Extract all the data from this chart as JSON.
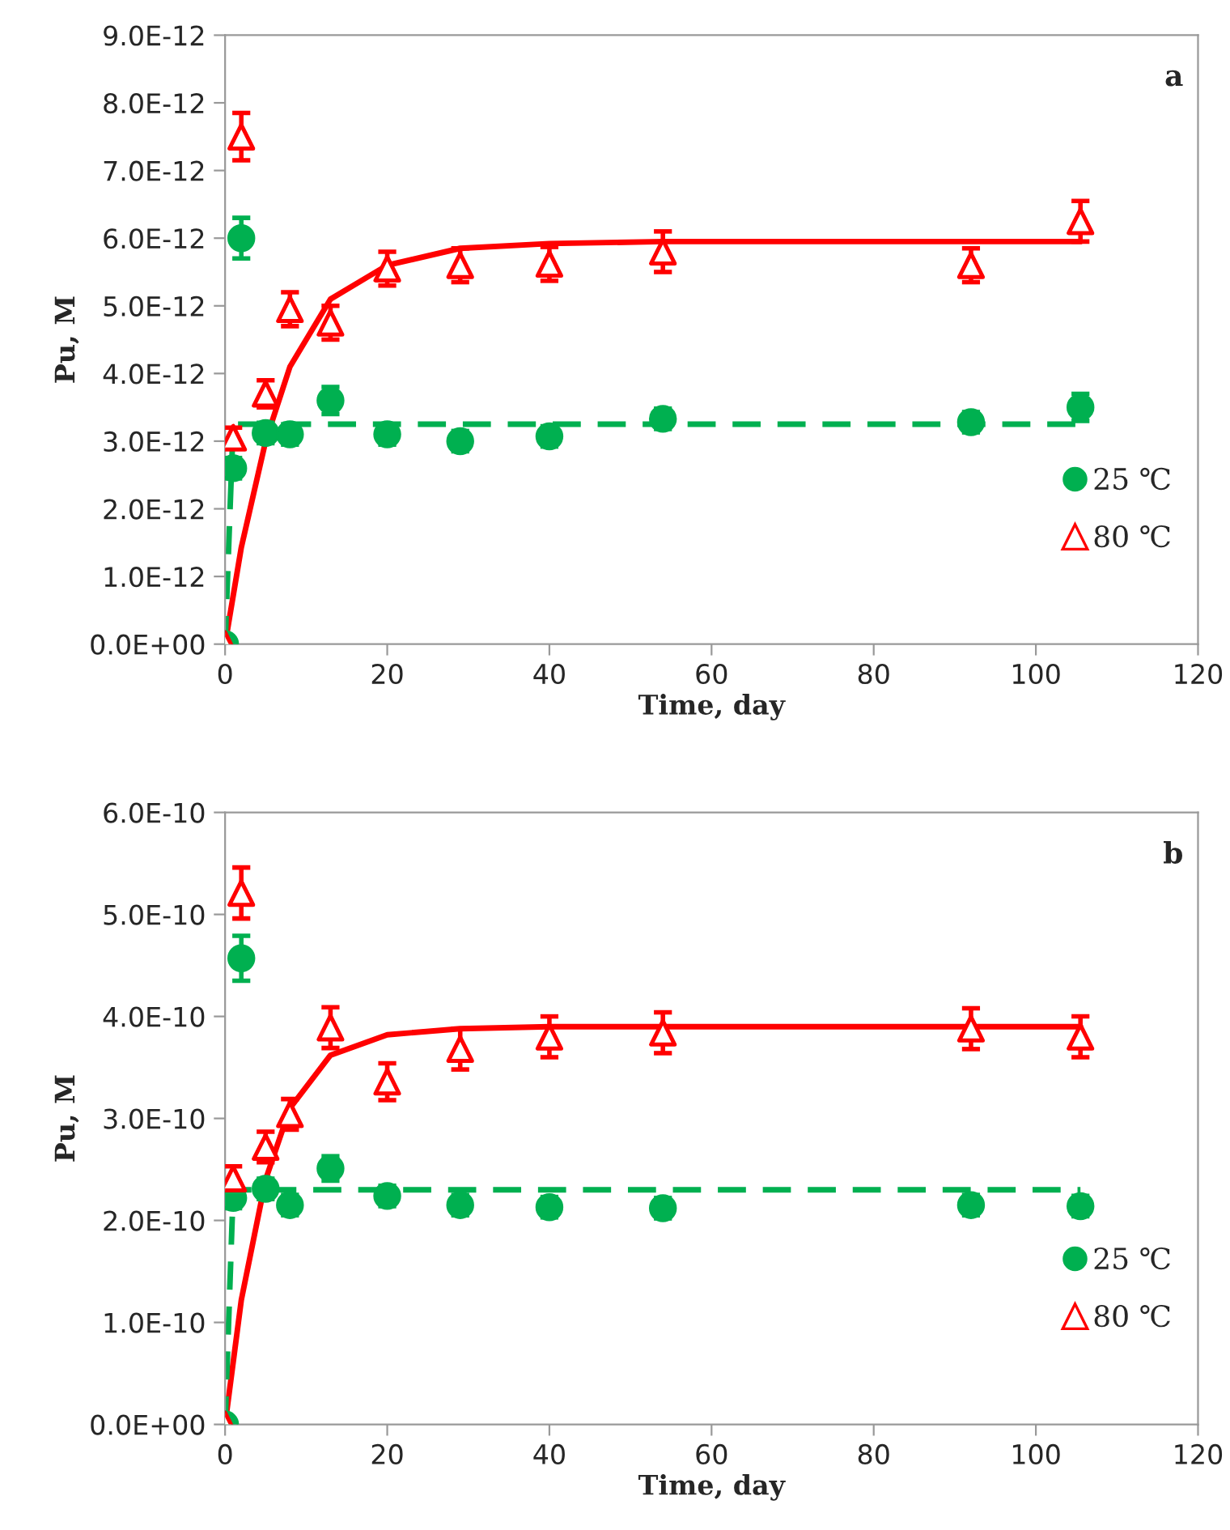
{
  "chart_data": [
    {
      "type": "scatter",
      "xlabel": "Time, day",
      "ylabel": "Pu, M",
      "annotations": [
        "a"
      ],
      "xlim": [
        0,
        120
      ],
      "xticks": [
        0,
        20,
        40,
        60,
        80,
        100,
        120
      ],
      "ylim": [
        0,
        9e-12
      ],
      "yticks": [
        {
          "value": 0,
          "label": "0.0E+00"
        },
        {
          "value": 1e-12,
          "label": "1.0E-12"
        },
        {
          "value": 2e-12,
          "label": "2.0E-12"
        },
        {
          "value": 3e-12,
          "label": "3.0E-12"
        },
        {
          "value": 4e-12,
          "label": "4.0E-12"
        },
        {
          "value": 5e-12,
          "label": "5.0E-12"
        },
        {
          "value": 6e-12,
          "label": "6.0E-12"
        },
        {
          "value": 7e-12,
          "label": "7.0E-12"
        },
        {
          "value": 8e-12,
          "label": "8.0E-12"
        },
        {
          "value": 9e-12,
          "label": "9.0E-12"
        }
      ],
      "grid": false,
      "legend": "right",
      "series": [
        {
          "type": "line",
          "color": "#ff0000",
          "line_style": "solid",
          "marker": "none",
          "x": [
            0,
            2,
            5,
            8,
            13,
            20,
            29,
            40,
            54,
            105.5
          ],
          "values": [
            0,
            1.43e-12,
            3e-12,
            4.1e-12,
            5.1e-12,
            5.6e-12,
            5.85e-12,
            5.92e-12,
            5.95e-12,
            5.95e-12
          ]
        },
        {
          "type": "line",
          "color": "#00b050",
          "line_style": "dashed",
          "marker": "none",
          "x": [
            0,
            1,
            105.5
          ],
          "values": [
            0,
            3.25e-12,
            3.25e-12
          ]
        },
        {
          "name": "25 ℃",
          "color": "#00b050",
          "marker": "circle",
          "x": [
            0,
            1,
            2,
            5,
            8,
            13,
            20,
            29,
            40,
            54,
            92,
            105.5
          ],
          "values": [
            0,
            2.6e-12,
            6e-12,
            3.12e-12,
            3.1e-12,
            3.6e-12,
            3.1e-12,
            3e-12,
            3.07e-12,
            3.33e-12,
            3.28e-12,
            3.5e-12
          ],
          "errors": [
            null,
            1.5e-13,
            3e-13,
            1.5e-13,
            1.5e-13,
            2e-13,
            1.5e-13,
            1.5e-13,
            1.5e-13,
            1.5e-13,
            1.5e-13,
            2e-13
          ]
        },
        {
          "name": "80 ℃",
          "color": "#ff0000",
          "marker": "triangle",
          "x": [
            0,
            1,
            2,
            5,
            8,
            13,
            20,
            29,
            40,
            54,
            92,
            105.5
          ],
          "values": [
            0,
            3.05e-12,
            7.5e-12,
            3.7e-12,
            4.95e-12,
            4.75e-12,
            5.55e-12,
            5.6e-12,
            5.62e-12,
            5.8e-12,
            5.6e-12,
            6.25e-12
          ],
          "errors": [
            null,
            1.5e-13,
            3.5e-13,
            2e-13,
            2.5e-13,
            2.5e-13,
            2.5e-13,
            2.5e-13,
            2.5e-13,
            3e-13,
            2.5e-13,
            3e-13
          ]
        }
      ]
    },
    {
      "type": "scatter",
      "xlabel": "Time, day",
      "ylabel": "Pu, M",
      "annotations": [
        "b"
      ],
      "xlim": [
        0,
        120
      ],
      "xticks": [
        0,
        20,
        40,
        60,
        80,
        100,
        120
      ],
      "ylim": [
        0,
        6e-10
      ],
      "yticks": [
        {
          "value": 0,
          "label": "0.0E+00"
        },
        {
          "value": 1e-10,
          "label": "1.0E-10"
        },
        {
          "value": 2e-10,
          "label": "2.0E-10"
        },
        {
          "value": 3e-10,
          "label": "3.0E-10"
        },
        {
          "value": 4e-10,
          "label": "4.0E-10"
        },
        {
          "value": 5e-10,
          "label": "5.0E-10"
        },
        {
          "value": 6e-10,
          "label": "6.0E-10"
        }
      ],
      "grid": false,
      "legend": "right",
      "series": [
        {
          "type": "line",
          "color": "#ff0000",
          "line_style": "solid",
          "marker": "none",
          "x": [
            0,
            2,
            5,
            8,
            13,
            20,
            29,
            40,
            105.5
          ],
          "values": [
            0,
            1.22e-10,
            2.4e-10,
            3.1e-10,
            3.62e-10,
            3.82e-10,
            3.88e-10,
            3.9e-10,
            3.9e-10
          ]
        },
        {
          "type": "line",
          "color": "#00b050",
          "line_style": "dashed",
          "marker": "none",
          "x": [
            0,
            1,
            105.5
          ],
          "values": [
            0,
            2.3e-10,
            2.3e-10
          ]
        },
        {
          "name": "25 ℃",
          "color": "#00b050",
          "marker": "circle",
          "x": [
            0,
            1,
            2,
            5,
            8,
            13,
            20,
            29,
            40,
            54,
            92,
            105.5
          ],
          "values": [
            0,
            2.22e-10,
            4.57e-10,
            2.31e-10,
            2.15e-10,
            2.51e-10,
            2.24e-10,
            2.15e-10,
            2.13e-10,
            2.12e-10,
            2.15e-10,
            2.14e-10
          ],
          "errors": [
            null,
            1e-11,
            2.2e-11,
            1e-11,
            1e-11,
            1.2e-11,
            1e-11,
            1e-11,
            1e-11,
            1e-11,
            1e-11,
            1e-11
          ]
        },
        {
          "name": "80 ℃",
          "color": "#ff0000",
          "marker": "triangle",
          "x": [
            0,
            1,
            2,
            5,
            8,
            13,
            20,
            29,
            40,
            54,
            92,
            105.5
          ],
          "values": [
            0,
            2.41e-10,
            5.21e-10,
            2.72e-10,
            3.04e-10,
            3.89e-10,
            3.36e-10,
            3.68e-10,
            3.8e-10,
            3.84e-10,
            3.88e-10,
            3.8e-10
          ],
          "errors": [
            null,
            1.2e-11,
            2.5e-11,
            1.5e-11,
            1.5e-11,
            2e-11,
            1.8e-11,
            2e-11,
            2e-11,
            2e-11,
            2e-11,
            2e-11
          ]
        }
      ]
    }
  ]
}
